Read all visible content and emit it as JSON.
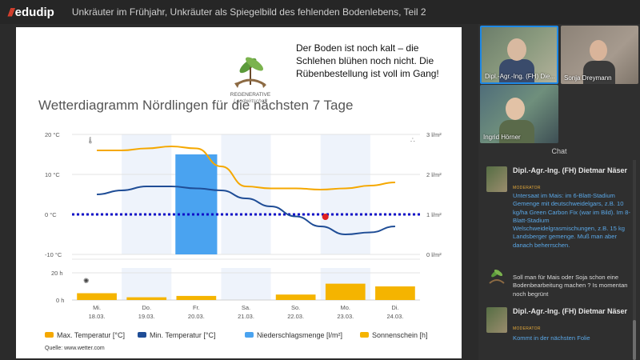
{
  "header": {
    "logo_text": "edudip",
    "session_title": "Unkräuter im Frühjahr, Unkräuter als Spiegelbild des fehlenden Bodenlebens, Teil 2"
  },
  "slide": {
    "logo_caption_line1": "REGENERATIVE",
    "logo_caption_line2": "Landwirtschaft",
    "note": "Der Boden ist noch kalt – die Schlehen blühen noch nicht. Die Rübenbestellung ist voll im Gang!",
    "chart_title": "Wetterdiagramm Nördlingen für die nächsten 7 Tage",
    "source": "Quelle: www.wetter.com"
  },
  "chart_data": {
    "type": "line",
    "title": "Wetterdiagramm Nördlingen für die nächsten 7 Tage",
    "categories": [
      {
        "day": "Mi.",
        "date": "18.03."
      },
      {
        "day": "Do.",
        "date": "19.03."
      },
      {
        "day": "Fr.",
        "date": "20.03."
      },
      {
        "day": "Sa.",
        "date": "21.03."
      },
      {
        "day": "So.",
        "date": "22.03."
      },
      {
        "day": "Mo.",
        "date": "23.03."
      },
      {
        "day": "Di.",
        "date": "24.03."
      }
    ],
    "temp_axis": {
      "ticks": [
        "20 °C",
        "10 °C",
        "0 °C",
        "-10 °C"
      ],
      "range": [
        -10,
        20
      ]
    },
    "precip_axis": {
      "ticks": [
        "3 l/m²",
        "2 l/m²",
        "1 l/m²",
        "0 l/m²"
      ],
      "range": [
        0,
        3
      ]
    },
    "sun_axis": {
      "ticks": [
        "20 h",
        "0 h"
      ],
      "range": [
        0,
        20
      ]
    },
    "series": [
      {
        "name": "Max. Temperatur [°C]",
        "color": "#f5a800",
        "x": [
          0,
          0.5,
          1,
          1.5,
          2,
          2.5,
          3,
          3.5,
          4,
          4.5,
          5,
          5.5,
          6
        ],
        "values": [
          16,
          16,
          16.5,
          17,
          16.5,
          12,
          7,
          6.5,
          6.5,
          6.2,
          6.5,
          7.2,
          8
        ]
      },
      {
        "name": "Min. Temperatur [°C]",
        "color": "#1f4d96",
        "x": [
          0,
          0.5,
          1,
          1.5,
          2,
          2.5,
          3,
          3.5,
          4,
          4.5,
          5,
          5.5,
          6
        ],
        "values": [
          5,
          6,
          7,
          7,
          6.5,
          6,
          4,
          2,
          -0.5,
          -3,
          -5,
          -4.5,
          -3
        ]
      },
      {
        "name": "Niederschlagsmenge [l/m²]",
        "color": "#4aa3f0",
        "bars": [
          0,
          0,
          2.5,
          0,
          0,
          0,
          0
        ]
      },
      {
        "name": "Sonnenschein [h]",
        "color": "#f5b400",
        "bars": [
          5,
          2,
          3,
          0,
          4,
          12,
          10
        ]
      }
    ],
    "zero_line": {
      "color": "#1010c8",
      "style": "dotted"
    },
    "marker": {
      "color": "#e02020",
      "x": 5,
      "y": -0.6
    }
  },
  "participants": [
    {
      "name": "Dipl.-Agr.-Ing. (FH) Die..."
    },
    {
      "name": "Sonja Dreymann"
    },
    {
      "name": "Ingrid Hörner"
    }
  ],
  "chat": {
    "title": "Chat",
    "messages": [
      {
        "author": "Dipl.-Agr.-Ing. (FH) Dietmar Näser",
        "role": "MODERATOR",
        "text": "Untersaat im Mais: im 6-Blatt-Stadium Gemenge mit deutschweidelgars, z.B. 10 kg/ha Green Carbon Fix (war im Bild). Im 8-Blatt-Stadium Welschweidelgrasmischungen, z.B. 15 kg Landsberger gemenge. Muß man aber danach beherrschen."
      },
      {
        "author": "",
        "role": "",
        "text": "Soll man für Mais oder Soja schon eine Bodenbearbeitung machen ? Is momentan noch begrünt"
      },
      {
        "author": "Dipl.-Agr.-Ing. (FH) Dietmar Näser",
        "role": "MODERATOR",
        "text": "Kommt in der nächsten Folie"
      }
    ]
  }
}
